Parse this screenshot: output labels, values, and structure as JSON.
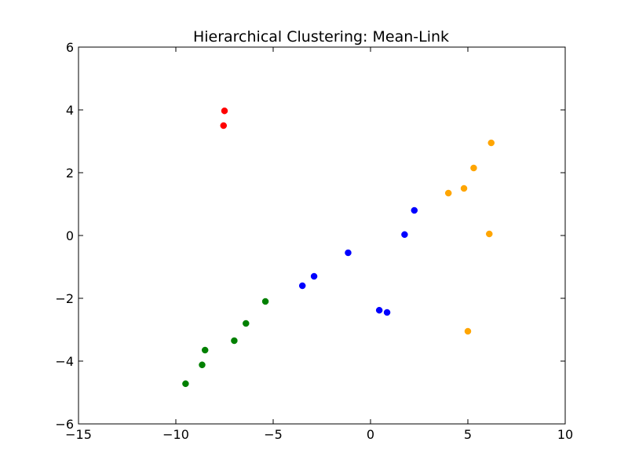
{
  "chart_data": {
    "type": "scatter",
    "title": "Hierarchical Clustering: Mean-Link",
    "xlabel": "",
    "ylabel": "",
    "xlim": [
      -15,
      10
    ],
    "ylim": [
      -6,
      6
    ],
    "x_ticks": [
      -15,
      -10,
      -5,
      0,
      5,
      10
    ],
    "x_tick_labels": [
      "−15",
      "−10",
      "−5",
      "0",
      "5",
      "10"
    ],
    "y_ticks": [
      -6,
      -4,
      -2,
      0,
      2,
      4,
      6
    ],
    "y_tick_labels": [
      "−6",
      "−4",
      "−2",
      "0",
      "2",
      "4",
      "6"
    ],
    "grid": false,
    "legend": false,
    "series": [
      {
        "color": "#ff0000",
        "points": [
          {
            "x": -7.5,
            "y": 3.97
          },
          {
            "x": -7.55,
            "y": 3.5
          }
        ]
      },
      {
        "color": "#008000",
        "points": [
          {
            "x": -5.4,
            "y": -2.1
          },
          {
            "x": -6.4,
            "y": -2.8
          },
          {
            "x": -7.0,
            "y": -3.35
          },
          {
            "x": -8.5,
            "y": -3.65
          },
          {
            "x": -8.65,
            "y": -4.12
          },
          {
            "x": -9.5,
            "y": -4.72
          }
        ]
      },
      {
        "color": "#0000ff",
        "points": [
          {
            "x": 2.25,
            "y": 0.8
          },
          {
            "x": 1.75,
            "y": 0.03
          },
          {
            "x": -1.15,
            "y": -0.55
          },
          {
            "x": -2.9,
            "y": -1.3
          },
          {
            "x": -3.5,
            "y": -1.6
          },
          {
            "x": 0.45,
            "y": -2.38
          },
          {
            "x": 0.85,
            "y": -2.45
          }
        ]
      },
      {
        "color": "#ffa500",
        "points": [
          {
            "x": 6.2,
            "y": 2.95
          },
          {
            "x": 5.3,
            "y": 2.15
          },
          {
            "x": 4.8,
            "y": 1.5
          },
          {
            "x": 4.0,
            "y": 1.35
          },
          {
            "x": 6.1,
            "y": 0.05
          },
          {
            "x": 5.0,
            "y": -3.05
          }
        ]
      }
    ]
  }
}
